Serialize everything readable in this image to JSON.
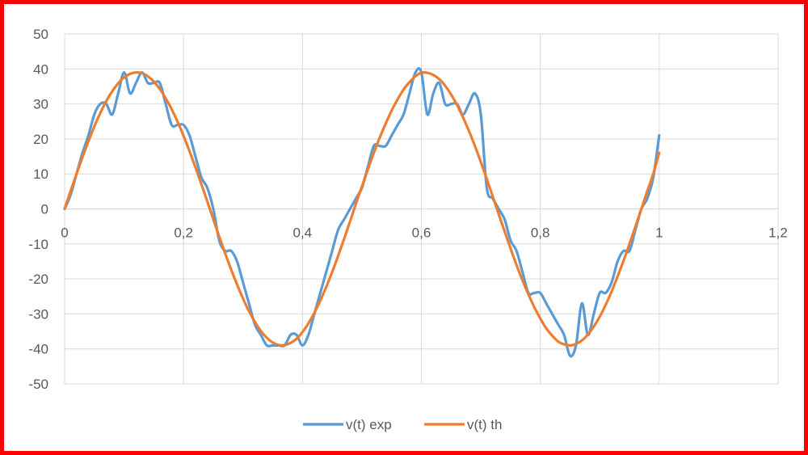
{
  "frame": {
    "border_color": "#ff0000"
  },
  "chart_data": {
    "type": "line",
    "title": "",
    "xlabel": "",
    "ylabel": "",
    "xlim": [
      0,
      1.2
    ],
    "ylim": [
      -50,
      50
    ],
    "x_ticks": [
      0,
      0.2,
      0.4,
      0.6,
      0.8,
      1,
      1.2
    ],
    "x_tick_labels": [
      "0",
      "0,2",
      "0,4",
      "0,6",
      "0,8",
      "1",
      "1,2"
    ],
    "y_ticks": [
      50,
      40,
      30,
      20,
      10,
      0,
      -10,
      -20,
      -30,
      -40,
      -50
    ],
    "y_tick_labels": [
      "50",
      "40",
      "30",
      "20",
      "10",
      "0",
      "-10",
      "-20",
      "-30",
      "-40",
      "-50"
    ],
    "grid": true,
    "legend_position": "bottom",
    "series": [
      {
        "name": "v(t) exp",
        "color": "#5b9bd5",
        "x": [
          0,
          0.01,
          0.02,
          0.03,
          0.04,
          0.05,
          0.06,
          0.07,
          0.08,
          0.09,
          0.1,
          0.11,
          0.12,
          0.13,
          0.14,
          0.15,
          0.16,
          0.17,
          0.18,
          0.19,
          0.2,
          0.21,
          0.22,
          0.23,
          0.24,
          0.25,
          0.26,
          0.27,
          0.28,
          0.29,
          0.3,
          0.31,
          0.32,
          0.33,
          0.34,
          0.35,
          0.36,
          0.37,
          0.38,
          0.39,
          0.4,
          0.41,
          0.42,
          0.43,
          0.44,
          0.45,
          0.46,
          0.47,
          0.48,
          0.49,
          0.5,
          0.51,
          0.52,
          0.53,
          0.54,
          0.55,
          0.56,
          0.57,
          0.58,
          0.59,
          0.6,
          0.61,
          0.62,
          0.63,
          0.64,
          0.65,
          0.66,
          0.67,
          0.68,
          0.69,
          0.7,
          0.71,
          0.72,
          0.73,
          0.74,
          0.75,
          0.76,
          0.77,
          0.78,
          0.79,
          0.8,
          0.81,
          0.82,
          0.83,
          0.84,
          0.85,
          0.86,
          0.87,
          0.88,
          0.89,
          0.9,
          0.91,
          0.92,
          0.93,
          0.94,
          0.95,
          0.96,
          0.97,
          0.98,
          0.99,
          1.0
        ],
        "values": [
          0,
          4,
          10,
          16,
          21,
          27,
          30,
          30,
          27,
          33,
          39,
          33,
          36,
          39,
          36,
          36,
          36,
          30,
          24,
          24,
          24,
          21,
          15,
          9,
          6,
          0,
          -9,
          -12,
          -12,
          -15,
          -21,
          -27,
          -33,
          -36,
          -39,
          -39,
          -39,
          -39,
          -36,
          -36,
          -39,
          -36,
          -30,
          -24,
          -18,
          -12,
          -6,
          -3,
          0,
          3,
          6,
          12,
          18,
          18,
          18,
          21,
          24,
          27,
          33,
          39,
          39,
          27,
          33,
          36,
          30,
          30,
          30,
          27,
          30,
          33,
          27,
          6,
          3,
          0,
          -3,
          -9,
          -12,
          -18,
          -24,
          -24,
          -24,
          -27,
          -30,
          -33,
          -36,
          -42,
          -39,
          -27,
          -36,
          -30,
          -24,
          -24,
          -21,
          -15,
          -12,
          -12,
          -6,
          0,
          3,
          9,
          21
        ]
      },
      {
        "name": "v(t) th",
        "color": "#ed7d31",
        "x": [
          0,
          0.01,
          0.02,
          0.03,
          0.04,
          0.05,
          0.06,
          0.07,
          0.08,
          0.09,
          0.1,
          0.11,
          0.12,
          0.13,
          0.14,
          0.15,
          0.16,
          0.17,
          0.18,
          0.19,
          0.2,
          0.21,
          0.22,
          0.23,
          0.24,
          0.25,
          0.26,
          0.27,
          0.28,
          0.29,
          0.3,
          0.31,
          0.32,
          0.33,
          0.34,
          0.35,
          0.36,
          0.37,
          0.38,
          0.39,
          0.4,
          0.41,
          0.42,
          0.43,
          0.44,
          0.45,
          0.46,
          0.47,
          0.48,
          0.49,
          0.5,
          0.51,
          0.52,
          0.53,
          0.54,
          0.55,
          0.56,
          0.57,
          0.58,
          0.59,
          0.6,
          0.61,
          0.62,
          0.63,
          0.64,
          0.65,
          0.66,
          0.67,
          0.68,
          0.69,
          0.7,
          0.71,
          0.72,
          0.73,
          0.74,
          0.75,
          0.76,
          0.77,
          0.78,
          0.79,
          0.8,
          0.81,
          0.82,
          0.83,
          0.84,
          0.85,
          0.86,
          0.87,
          0.88,
          0.89,
          0.9,
          0.91,
          0.92,
          0.93,
          0.94,
          0.95,
          0.96,
          0.97,
          0.98,
          0.99,
          1.0
        ],
        "values": [
          0.0,
          5.1,
          10.0,
          14.8,
          19.3,
          23.6,
          27.4,
          30.8,
          33.6,
          35.9,
          37.6,
          38.6,
          39.0,
          38.8,
          37.9,
          36.4,
          34.3,
          31.6,
          28.5,
          24.9,
          20.9,
          16.5,
          11.9,
          7.1,
          2.1,
          -2.9,
          -7.9,
          -12.7,
          -17.3,
          -21.6,
          -25.6,
          -29.2,
          -32.3,
          -34.9,
          -36.8,
          -38.2,
          -38.9,
          -38.9,
          -38.3,
          -37.1,
          -35.2,
          -32.7,
          -29.7,
          -26.2,
          -22.3,
          -18.0,
          -13.4,
          -8.6,
          -3.6,
          1.5,
          6.4,
          11.3,
          16.0,
          20.4,
          24.4,
          28.1,
          31.3,
          34.1,
          36.2,
          37.9,
          38.9,
          38.9,
          38.3,
          37.1,
          35.2,
          32.7,
          29.7,
          26.2,
          22.3,
          18.0,
          13.4,
          8.6,
          3.6,
          -1.5,
          -6.4,
          -11.3,
          -16.0,
          -20.4,
          -24.4,
          -28.1,
          -31.3,
          -34.1,
          -36.2,
          -37.9,
          -38.7,
          -39.0,
          -38.6,
          -37.6,
          -35.9,
          -33.6,
          -30.8,
          -27.4,
          -23.6,
          -19.3,
          -14.8,
          -10.0,
          -5.1,
          0.0,
          5.1,
          10.0,
          16.0
        ]
      }
    ]
  }
}
